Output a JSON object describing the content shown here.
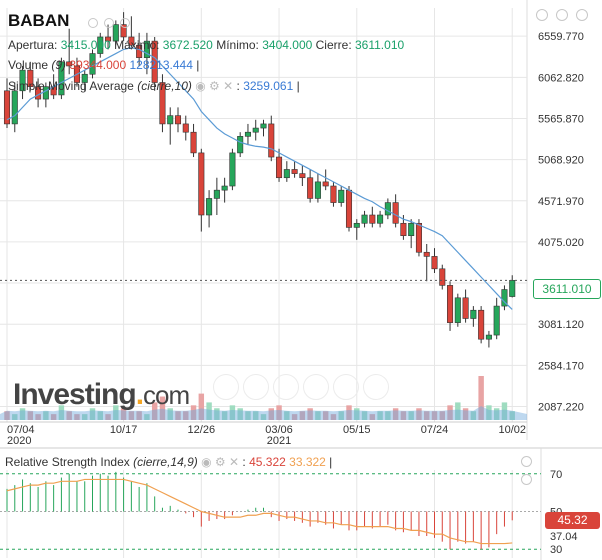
{
  "header": {
    "ticker": "BABAN",
    "apertura_label": "Apertura:",
    "apertura": "3415.000",
    "maximo_label": "Máximo:",
    "maximo": "3672.520",
    "minimo_label": "Mínimo:",
    "minimo": "3404.000",
    "cierre_label": "Cierre:",
    "cierre": "3611.010",
    "volume_label": "Volume",
    "volume_param": "(9)",
    "volume_value_1": "39344.000",
    "volume_value_2": "128213.444",
    "sma_label": "Simple Moving Average",
    "sma_param": "(cierre,10)",
    "sma_value": "3259.061"
  },
  "rsi": {
    "label": "Relative Strength Index",
    "param": "(cierre,14,9)",
    "value_1": "45.322",
    "value_2": "33.322",
    "current_badge": "45.32"
  },
  "price_badge": "3611.010",
  "logo": {
    "main": "Investing",
    "suffix": "com"
  },
  "colors": {
    "up": "#26a65b",
    "down": "#d9443a",
    "sma": "#5b9bd5",
    "rsi_line": "#f0a050",
    "grid": "#e6e6e6"
  },
  "icons": [
    "eye-icon",
    "settings-icon",
    "close-icon",
    "fullscreen-icon"
  ],
  "chart_data": {
    "type": "candlestick",
    "y_ticks": [
      6559.77,
      6062.82,
      5565.87,
      5068.92,
      4571.97,
      4075.02,
      3578.07,
      3081.12,
      2584.17,
      2087.22
    ],
    "y_tick_labels": [
      "6559.770",
      "6062.820",
      "5565.870",
      "5068.920",
      "4571.970",
      "4075.020",
      "",
      "3081.120",
      "2584.170",
      "2087.220"
    ],
    "x_tick_labels": [
      {
        "label": "07/04",
        "sub": "2020",
        "i": 0
      },
      {
        "label": "10/17",
        "sub": "",
        "i": 15
      },
      {
        "label": "12/26",
        "sub": "",
        "i": 25
      },
      {
        "label": "03/06",
        "sub": "2021",
        "i": 35
      },
      {
        "label": "05/15",
        "sub": "",
        "i": 45
      },
      {
        "label": "07/24",
        "sub": "",
        "i": 55
      },
      {
        "label": "10/02",
        "sub": "",
        "i": 65
      }
    ],
    "ohlc": [
      [
        5900,
        6050,
        5450,
        5500
      ],
      [
        5500,
        6000,
        5400,
        5900
      ],
      [
        5900,
        6200,
        5800,
        6150
      ],
      [
        6150,
        6250,
        5900,
        5950
      ],
      [
        5950,
        6050,
        5700,
        5800
      ],
      [
        5800,
        6000,
        5700,
        5950
      ],
      [
        5950,
        6100,
        5800,
        5850
      ],
      [
        5850,
        6300,
        5800,
        6250
      ],
      [
        6250,
        6650,
        6100,
        6200
      ],
      [
        6200,
        6300,
        5950,
        6000
      ],
      [
        6000,
        6150,
        5900,
        6100
      ],
      [
        6100,
        6400,
        6050,
        6350
      ],
      [
        6350,
        6600,
        6300,
        6550
      ],
      [
        6550,
        6700,
        6400,
        6500
      ],
      [
        6500,
        6750,
        6450,
        6700
      ],
      [
        6700,
        6850,
        6500,
        6550
      ],
      [
        6550,
        6800,
        6400,
        6450
      ],
      [
        6450,
        6600,
        6200,
        6300
      ],
      [
        6300,
        6600,
        6100,
        6500
      ],
      [
        6500,
        6550,
        5900,
        6000
      ],
      [
        6000,
        6100,
        5400,
        5500
      ],
      [
        5500,
        5700,
        5250,
        5600
      ],
      [
        5600,
        5700,
        5400,
        5500
      ],
      [
        5500,
        5600,
        5300,
        5400
      ],
      [
        5400,
        5500,
        5100,
        5150
      ],
      [
        5150,
        5200,
        4200,
        4400
      ],
      [
        4400,
        4700,
        4250,
        4600
      ],
      [
        4600,
        4850,
        4400,
        4700
      ],
      [
        4700,
        4850,
        4550,
        4750
      ],
      [
        4750,
        5200,
        4700,
        5150
      ],
      [
        5150,
        5400,
        5100,
        5350
      ],
      [
        5350,
        5500,
        5250,
        5400
      ],
      [
        5400,
        5550,
        5300,
        5450
      ],
      [
        5450,
        5550,
        5350,
        5500
      ],
      [
        5500,
        5600,
        5050,
        5100
      ],
      [
        5100,
        5200,
        4800,
        4850
      ],
      [
        4850,
        5050,
        4800,
        4950
      ],
      [
        4950,
        5050,
        4850,
        4900
      ],
      [
        4900,
        5000,
        4750,
        4850
      ],
      [
        4850,
        4950,
        4550,
        4600
      ],
      [
        4600,
        4900,
        4550,
        4800
      ],
      [
        4800,
        4950,
        4700,
        4750
      ],
      [
        4750,
        4800,
        4500,
        4550
      ],
      [
        4550,
        4750,
        4500,
        4700
      ],
      [
        4700,
        4750,
        4200,
        4250
      ],
      [
        4250,
        4350,
        4100,
        4300
      ],
      [
        4300,
        4450,
        4250,
        4400
      ],
      [
        4400,
        4500,
        4250,
        4300
      ],
      [
        4300,
        4450,
        4250,
        4400
      ],
      [
        4400,
        4600,
        4350,
        4550
      ],
      [
        4550,
        4650,
        4250,
        4300
      ],
      [
        4300,
        4400,
        4100,
        4150
      ],
      [
        4150,
        4350,
        4000,
        4300
      ],
      [
        4300,
        4350,
        3900,
        3950
      ],
      [
        3950,
        4050,
        3600,
        3900
      ],
      [
        3900,
        4000,
        3700,
        3750
      ],
      [
        3750,
        3800,
        3500,
        3550
      ],
      [
        3550,
        3600,
        3000,
        3100
      ],
      [
        3100,
        3450,
        3050,
        3400
      ],
      [
        3400,
        3500,
        3100,
        3150
      ],
      [
        3150,
        3300,
        3050,
        3250
      ],
      [
        3250,
        3300,
        2850,
        2900
      ],
      [
        2900,
        3000,
        2800,
        2950
      ],
      [
        2950,
        3400,
        2900,
        3300
      ],
      [
        3300,
        3550,
        3250,
        3500
      ],
      [
        3415,
        3672.52,
        3404,
        3611.01
      ]
    ],
    "sma": [
      5550,
      5600,
      5700,
      5800,
      5850,
      5900,
      5950,
      6000,
      6050,
      6100,
      6150,
      6200,
      6250,
      6300,
      6350,
      6400,
      6420,
      6400,
      6350,
      6300,
      6200,
      6100,
      6000,
      5900,
      5800,
      5650,
      5550,
      5450,
      5380,
      5330,
      5280,
      5250,
      5230,
      5220,
      5200,
      5150,
      5100,
      5050,
      5000,
      4950,
      4900,
      4850,
      4800,
      4750,
      4700,
      4650,
      4600,
      4560,
      4500,
      4450,
      4400,
      4350,
      4320,
      4280,
      4240,
      4200,
      4150,
      4050,
      3950,
      3850,
      3750,
      3650,
      3550,
      3450,
      3350,
      3259.061
    ],
    "volume": [
      3,
      2,
      4,
      3,
      2,
      3,
      2,
      5,
      3,
      2,
      2,
      4,
      3,
      2,
      5,
      4,
      3,
      3,
      2,
      6,
      8,
      4,
      3,
      3,
      5,
      9,
      6,
      4,
      3,
      5,
      4,
      3,
      3,
      2,
      4,
      5,
      3,
      2,
      3,
      4,
      3,
      3,
      2,
      3,
      5,
      4,
      3,
      2,
      3,
      3,
      4,
      3,
      3,
      4,
      3,
      3,
      3,
      5,
      6,
      4,
      3,
      15,
      5,
      4,
      6,
      3
    ],
    "rsi_range": [
      30,
      70
    ],
    "rsi_ticks": [
      70,
      50,
      37.04,
      30
    ],
    "rsi_tick_labels": [
      "70",
      "50",
      "37.04",
      "30"
    ],
    "rsi": [
      62,
      64,
      67,
      65,
      63,
      66,
      64,
      68,
      70,
      66,
      66,
      69,
      70,
      69,
      71,
      68,
      66,
      63,
      65,
      58,
      52,
      53,
      51,
      49,
      47,
      42,
      45,
      46,
      46,
      48,
      50,
      51,
      52,
      52,
      47,
      45,
      46,
      45,
      44,
      42,
      44,
      43,
      41,
      43,
      40,
      40,
      42,
      41,
      42,
      43,
      40,
      39,
      40,
      37,
      37,
      36,
      34,
      30,
      34,
      33,
      34,
      30,
      31,
      38,
      42,
      45.322
    ],
    "rsi_signal": [
      61,
      62,
      63,
      64,
      64,
      65,
      65,
      66,
      66,
      66,
      67,
      67,
      67,
      67,
      67,
      67,
      66,
      65,
      64,
      62,
      60,
      58,
      56,
      54,
      52,
      50,
      49,
      48,
      47,
      47,
      47,
      48,
      48,
      49,
      49,
      48,
      47,
      47,
      46,
      45,
      45,
      44,
      44,
      43,
      43,
      42,
      42,
      42,
      42,
      42,
      41,
      41,
      40,
      40,
      39,
      38,
      38,
      36,
      35,
      34,
      34,
      33,
      33,
      33,
      33,
      33.322
    ],
    "last_price": 3611.01,
    "ylim": [
      1900,
      6900
    ]
  }
}
